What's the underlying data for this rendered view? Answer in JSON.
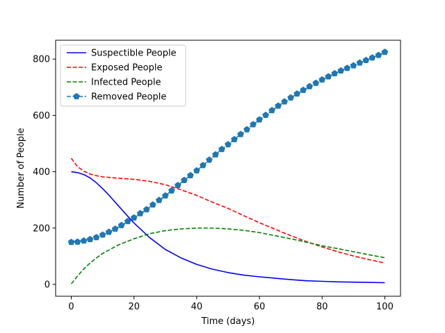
{
  "chart_data": {
    "type": "line",
    "title": "",
    "xlabel": "Time (days)",
    "ylabel": "Number of People",
    "xlim": [
      -5,
      105
    ],
    "ylim": [
      -42,
      867
    ],
    "xticks": [
      0,
      20,
      40,
      60,
      80,
      100
    ],
    "yticks": [
      0,
      200,
      400,
      600,
      800
    ],
    "grid": false,
    "legend_position": "top-left",
    "series": [
      {
        "name": "Suspectible People",
        "color": "#0000ff",
        "style": "solid",
        "x": [
          0,
          2,
          4,
          6,
          8,
          10,
          12,
          14,
          16,
          18,
          20,
          25,
          30,
          35,
          40,
          45,
          50,
          55,
          60,
          65,
          70,
          75,
          80,
          85,
          90,
          95,
          100
        ],
        "y": [
          400,
          397,
          390,
          378,
          361,
          340,
          317,
          292,
          267,
          242,
          218,
          166,
          124,
          94,
          71,
          54,
          42,
          33,
          27,
          22,
          17,
          13,
          11,
          9,
          8,
          7,
          6
        ]
      },
      {
        "name": "Exposed People",
        "color": "#ff0000",
        "style": "dashed",
        "x": [
          0,
          2,
          4,
          6,
          8,
          10,
          15,
          20,
          25,
          30,
          35,
          40,
          45,
          50,
          55,
          60,
          65,
          70,
          75,
          80,
          85,
          90,
          95,
          100
        ],
        "y": [
          448,
          418,
          402,
          392,
          386,
          382,
          377,
          373,
          366,
          354,
          336,
          316,
          292,
          270,
          244,
          219,
          196,
          173,
          152,
          133,
          116,
          101,
          88,
          76
        ]
      },
      {
        "name": "Infected People",
        "color": "#008000",
        "style": "dashed",
        "x": [
          0,
          2,
          4,
          6,
          8,
          10,
          15,
          20,
          25,
          30,
          35,
          40,
          45,
          50,
          55,
          60,
          65,
          70,
          75,
          80,
          85,
          90,
          95,
          100
        ],
        "y": [
          2,
          30,
          55,
          76,
          94,
          110,
          140,
          162,
          180,
          191,
          197,
          200,
          200,
          197,
          192,
          184,
          173,
          162,
          150,
          137,
          127,
          116,
          105,
          95
        ]
      },
      {
        "name": "Removed People",
        "color": "#1f77b4",
        "style": "dashed",
        "marker": "pentagon",
        "x": [
          0,
          2,
          4,
          6,
          8,
          10,
          12,
          14,
          16,
          18,
          20,
          22,
          24,
          26,
          28,
          30,
          32,
          34,
          36,
          38,
          40,
          42,
          44,
          46,
          48,
          50,
          52,
          54,
          56,
          58,
          60,
          62,
          64,
          66,
          68,
          70,
          72,
          74,
          76,
          78,
          80,
          82,
          84,
          86,
          88,
          90,
          92,
          94,
          96,
          98,
          100
        ],
        "y": [
          150,
          151,
          155,
          160,
          167,
          176,
          186,
          197,
          210,
          224,
          237,
          252,
          266,
          283,
          299,
          315,
          333,
          352,
          370,
          387,
          404,
          423,
          442,
          461,
          480,
          497,
          515,
          533,
          550,
          568,
          585,
          601,
          618,
          634,
          649,
          663,
          677,
          690,
          703,
          715,
          727,
          738,
          749,
          759,
          768,
          777,
          787,
          796,
          805,
          814,
          825
        ]
      }
    ]
  }
}
